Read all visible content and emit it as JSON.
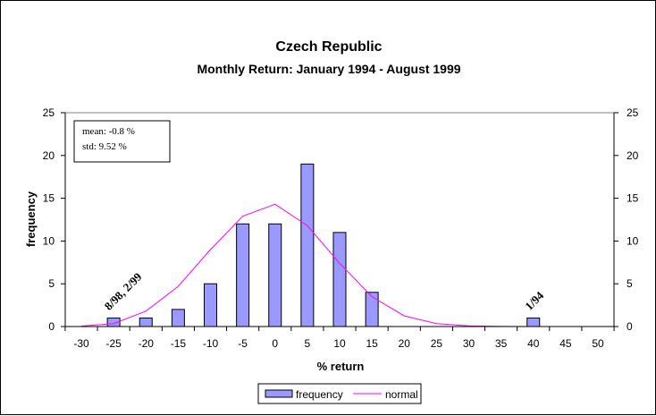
{
  "chart_data": {
    "type": "bar",
    "title": "Czech Republic",
    "subtitle": "Monthly Return: January 1994 - August 1999",
    "xlabel": "% return",
    "ylabel": "frequency",
    "categories": [
      "-30",
      "-25",
      "-20",
      "-15",
      "-10",
      "-5",
      "0",
      "5",
      "10",
      "15",
      "20",
      "25",
      "30",
      "35",
      "40",
      "45",
      "50"
    ],
    "x": [
      -30,
      -25,
      -20,
      -15,
      -10,
      -5,
      0,
      5,
      10,
      15,
      20,
      25,
      30,
      35,
      40,
      45,
      50
    ],
    "ylim": [
      0,
      25
    ],
    "y_ticks": [
      0,
      5,
      10,
      15,
      20,
      25
    ],
    "y_tick_labels": [
      "0",
      "5",
      "10",
      "15",
      "20",
      "25"
    ],
    "secondary_ylim": [
      0,
      25
    ],
    "secondary_y_tick_labels": [
      "0",
      "5",
      "10",
      "15",
      "20",
      "25"
    ],
    "grid": false,
    "series": [
      {
        "name": "frequency",
        "type": "bar",
        "color": "#9999ff",
        "values": [
          0,
          1,
          1,
          2,
          5,
          12,
          12,
          19,
          11,
          4,
          0,
          0,
          0,
          0,
          1,
          0,
          0
        ]
      },
      {
        "name": "normal",
        "type": "line",
        "color": "#ff00ff",
        "values": [
          0.05,
          0.35,
          1.8,
          4.7,
          9.0,
          12.9,
          14.3,
          11.8,
          7.4,
          3.5,
          1.25,
          0.35,
          0.07,
          0.01,
          0,
          0,
          0
        ]
      }
    ],
    "stats_box": {
      "mean_text": "mean: -0.8 %",
      "std_text": "std: 9.52 %"
    },
    "annotations": [
      {
        "text": "8/98, 2/99",
        "x": -25,
        "y": 1
      },
      {
        "text": "1/94",
        "x": 40,
        "y": 1
      }
    ],
    "legend": {
      "position": "bottom-center",
      "entries": [
        "frequency",
        "normal"
      ]
    }
  }
}
